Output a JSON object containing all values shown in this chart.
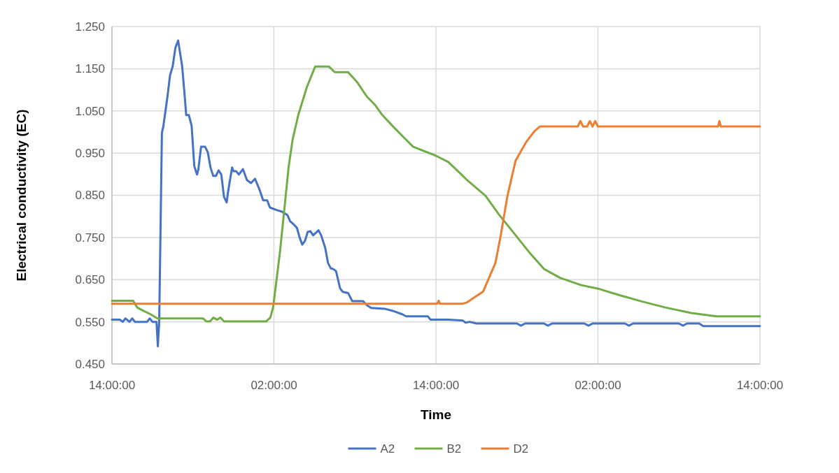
{
  "chart_data": {
    "type": "line",
    "xlabel": "Time",
    "ylabel": "Electrical conductivity (EC)",
    "xlim": [
      "2000-01-01T14:00",
      "2000-01-03T14:00"
    ],
    "xticks": [
      {
        "value": "2000-01-01T14:00",
        "label": "14:00:00"
      },
      {
        "value": "2000-01-02T02:00",
        "label": "02:00:00"
      },
      {
        "value": "2000-01-02T14:00",
        "label": "14:00:00"
      },
      {
        "value": "2000-01-03T02:00",
        "label": "02:00:00"
      },
      {
        "value": "2000-01-03T14:00",
        "label": "14:00:00"
      }
    ],
    "ylim": [
      0.45,
      1.25
    ],
    "yticks": [
      {
        "value": 0.45,
        "label": "0.450"
      },
      {
        "value": 0.55,
        "label": "0.550"
      },
      {
        "value": 0.65,
        "label": "0.650"
      },
      {
        "value": 0.75,
        "label": "0.750"
      },
      {
        "value": 0.85,
        "label": "0.850"
      },
      {
        "value": 0.95,
        "label": "0.950"
      },
      {
        "value": 1.05,
        "label": "1.050"
      },
      {
        "value": 1.15,
        "label": "1.150"
      },
      {
        "value": 1.25,
        "label": "1.250"
      }
    ],
    "grid": true,
    "legend": "bottom",
    "marker": "none",
    "line_style": "solid",
    "series": [
      {
        "name": "A2",
        "color": "#4472c4",
        "x": [
          "2000-01-01T14:00",
          "2000-01-01T14:36",
          "2000-01-01T14:48",
          "2000-01-01T15:00",
          "2000-01-01T15:18",
          "2000-01-01T15:30",
          "2000-01-01T15:42",
          "2000-01-01T16:36",
          "2000-01-01T16:48",
          "2000-01-01T17:00",
          "2000-01-01T17:18",
          "2000-01-01T17:24",
          "2000-01-01T17:30",
          "2000-01-01T17:42",
          "2000-01-01T17:48",
          "2000-01-01T18:06",
          "2000-01-01T18:18",
          "2000-01-01T18:30",
          "2000-01-01T18:42",
          "2000-01-01T18:54",
          "2000-01-01T19:00",
          "2000-01-01T19:12",
          "2000-01-01T19:24",
          "2000-01-01T19:30",
          "2000-01-01T19:42",
          "2000-01-01T19:54",
          "2000-01-01T20:06",
          "2000-01-01T20:18",
          "2000-01-01T20:24",
          "2000-01-01T20:36",
          "2000-01-01T20:54",
          "2000-01-01T21:06",
          "2000-01-01T21:18",
          "2000-01-01T21:30",
          "2000-01-01T21:42",
          "2000-01-01T21:54",
          "2000-01-01T22:06",
          "2000-01-01T22:18",
          "2000-01-01T22:30",
          "2000-01-01T22:36",
          "2000-01-01T22:54",
          "2000-01-01T23:00",
          "2000-01-01T23:12",
          "2000-01-01T23:24",
          "2000-01-01T23:42",
          "2000-01-02T00:00",
          "2000-01-02T00:18",
          "2000-01-02T00:36",
          "2000-01-02T00:54",
          "2000-01-02T01:12",
          "2000-01-02T01:30",
          "2000-01-02T01:42",
          "2000-01-02T02:12",
          "2000-01-02T02:36",
          "2000-01-02T03:00",
          "2000-01-02T03:12",
          "2000-01-02T03:24",
          "2000-01-02T03:42",
          "2000-01-02T03:54",
          "2000-01-02T04:06",
          "2000-01-02T04:18",
          "2000-01-02T04:30",
          "2000-01-02T04:42",
          "2000-01-02T04:54",
          "2000-01-02T05:18",
          "2000-01-02T05:30",
          "2000-01-02T05:48",
          "2000-01-02T06:00",
          "2000-01-02T06:12",
          "2000-01-02T06:24",
          "2000-01-02T06:36",
          "2000-01-02T06:54",
          "2000-01-02T07:06",
          "2000-01-02T07:30",
          "2000-01-02T07:48",
          "2000-01-02T08:36",
          "2000-01-02T08:54",
          "2000-01-02T09:12",
          "2000-01-02T10:12",
          "2000-01-02T10:48",
          "2000-01-02T11:30",
          "2000-01-02T11:48",
          "2000-01-02T13:24",
          "2000-01-02T13:36",
          "2000-01-02T14:54",
          "2000-01-02T16:00",
          "2000-01-02T16:12",
          "2000-01-02T16:30",
          "2000-01-02T17:00",
          "2000-01-02T20:00",
          "2000-01-02T20:18",
          "2000-01-02T20:36",
          "2000-01-02T22:00",
          "2000-01-02T22:18",
          "2000-01-02T22:36",
          "2000-01-03T01:00",
          "2000-01-03T01:18",
          "2000-01-03T01:36",
          "2000-01-03T04:00",
          "2000-01-03T04:18",
          "2000-01-03T04:36",
          "2000-01-03T08:00",
          "2000-01-03T08:18",
          "2000-01-03T08:36",
          "2000-01-03T09:30",
          "2000-01-03T09:48",
          "2000-01-03T14:00"
        ],
        "values": [
          0.555,
          0.555,
          0.55,
          0.558,
          0.55,
          0.558,
          0.55,
          0.55,
          0.558,
          0.55,
          0.55,
          0.492,
          0.55,
          0.998,
          1.012,
          1.081,
          1.134,
          1.156,
          1.2,
          1.217,
          1.197,
          1.156,
          1.081,
          1.04,
          1.04,
          1.015,
          0.919,
          0.899,
          0.911,
          0.965,
          0.965,
          0.952,
          0.916,
          0.896,
          0.896,
          0.909,
          0.899,
          0.846,
          0.833,
          0.858,
          0.916,
          0.907,
          0.907,
          0.899,
          0.912,
          0.886,
          0.879,
          0.889,
          0.866,
          0.838,
          0.838,
          0.821,
          0.815,
          0.811,
          0.803,
          0.788,
          0.783,
          0.773,
          0.75,
          0.733,
          0.742,
          0.763,
          0.765,
          0.755,
          0.767,
          0.755,
          0.725,
          0.69,
          0.677,
          0.675,
          0.67,
          0.629,
          0.621,
          0.618,
          0.599,
          0.599,
          0.589,
          0.583,
          0.581,
          0.576,
          0.568,
          0.563,
          0.563,
          0.555,
          0.555,
          0.553,
          0.548,
          0.55,
          0.546,
          0.546,
          0.541,
          0.546,
          0.546,
          0.541,
          0.546,
          0.546,
          0.541,
          0.546,
          0.546,
          0.541,
          0.546,
          0.546,
          0.541,
          0.546,
          0.546,
          0.54,
          0.54
        ]
      },
      {
        "name": "B2",
        "color": "#70ad47",
        "x": [
          "2000-01-01T14:00",
          "2000-01-01T15:34",
          "2000-01-01T15:52",
          "2000-01-01T16:20",
          "2000-01-01T16:51",
          "2000-01-01T17:22",
          "2000-01-01T20:45",
          "2000-01-01T21:00",
          "2000-01-01T21:16",
          "2000-01-01T21:31",
          "2000-01-01T21:47",
          "2000-01-01T22:02",
          "2000-01-01T22:18",
          "2000-01-02T01:25",
          "2000-01-02T01:44",
          "2000-01-02T01:56",
          "2000-01-02T02:08",
          "2000-01-02T02:27",
          "2000-01-02T02:46",
          "2000-01-02T03:05",
          "2000-01-02T03:23",
          "2000-01-02T03:48",
          "2000-01-02T04:26",
          "2000-01-02T05:03",
          "2000-01-02T06:05",
          "2000-01-02T06:30",
          "2000-01-02T07:29",
          "2000-01-02T07:48",
          "2000-01-02T08:10",
          "2000-01-02T08:35",
          "2000-01-02T08:53",
          "2000-01-02T09:28",
          "2000-01-02T10:02",
          "2000-01-02T10:46",
          "2000-01-02T11:32",
          "2000-01-02T12:19",
          "2000-01-02T13:59",
          "2000-01-02T14:55",
          "2000-01-02T16:19",
          "2000-01-02T17:40",
          "2000-01-02T18:42",
          "2000-01-02T19:44",
          "2000-01-02T20:59",
          "2000-01-02T22:01",
          "2000-01-02T23:13",
          "2000-01-03T00:46",
          "2000-01-03T01:58",
          "2000-01-03T03:31",
          "2000-01-03T05:17",
          "2000-01-03T07:00",
          "2000-01-03T08:55",
          "2000-01-03T10:47",
          "2000-01-03T14:00"
        ],
        "values": [
          0.6,
          0.6,
          0.584,
          0.576,
          0.568,
          0.558,
          0.558,
          0.551,
          0.551,
          0.56,
          0.555,
          0.56,
          0.551,
          0.551,
          0.56,
          0.584,
          0.634,
          0.717,
          0.816,
          0.916,
          0.982,
          1.04,
          1.106,
          1.155,
          1.155,
          1.142,
          1.142,
          1.131,
          1.118,
          1.098,
          1.084,
          1.065,
          1.04,
          1.015,
          0.99,
          0.965,
          0.944,
          0.929,
          0.886,
          0.849,
          0.803,
          0.762,
          0.712,
          0.675,
          0.654,
          0.637,
          0.629,
          0.614,
          0.598,
          0.584,
          0.571,
          0.563,
          0.563
        ]
      },
      {
        "name": "D2",
        "color": "#ed7d31",
        "x": [
          "2000-01-01T14:00",
          "2000-01-02T14:06",
          "2000-01-02T14:12",
          "2000-01-02T14:18",
          "2000-01-02T16:00",
          "2000-01-02T16:18",
          "2000-01-02T17:30",
          "2000-01-02T18:24",
          "2000-01-02T18:48",
          "2000-01-02T19:18",
          "2000-01-02T19:54",
          "2000-01-02T20:42",
          "2000-01-02T21:18",
          "2000-01-02T21:42",
          "2000-01-03T00:30",
          "2000-01-03T00:42",
          "2000-01-03T00:54",
          "2000-01-03T01:12",
          "2000-01-03T01:24",
          "2000-01-03T01:36",
          "2000-01-03T01:48",
          "2000-01-03T02:00",
          "2000-01-03T10:54",
          "2000-01-03T11:00",
          "2000-01-03T11:06",
          "2000-01-03T14:00"
        ],
        "values": [
          0.593,
          0.593,
          0.6,
          0.593,
          0.593,
          0.596,
          0.622,
          0.689,
          0.755,
          0.849,
          0.932,
          0.977,
          1.002,
          1.013,
          1.013,
          1.026,
          1.013,
          1.013,
          1.026,
          1.013,
          1.026,
          1.013,
          1.013,
          1.026,
          1.013,
          1.013
        ]
      }
    ]
  }
}
